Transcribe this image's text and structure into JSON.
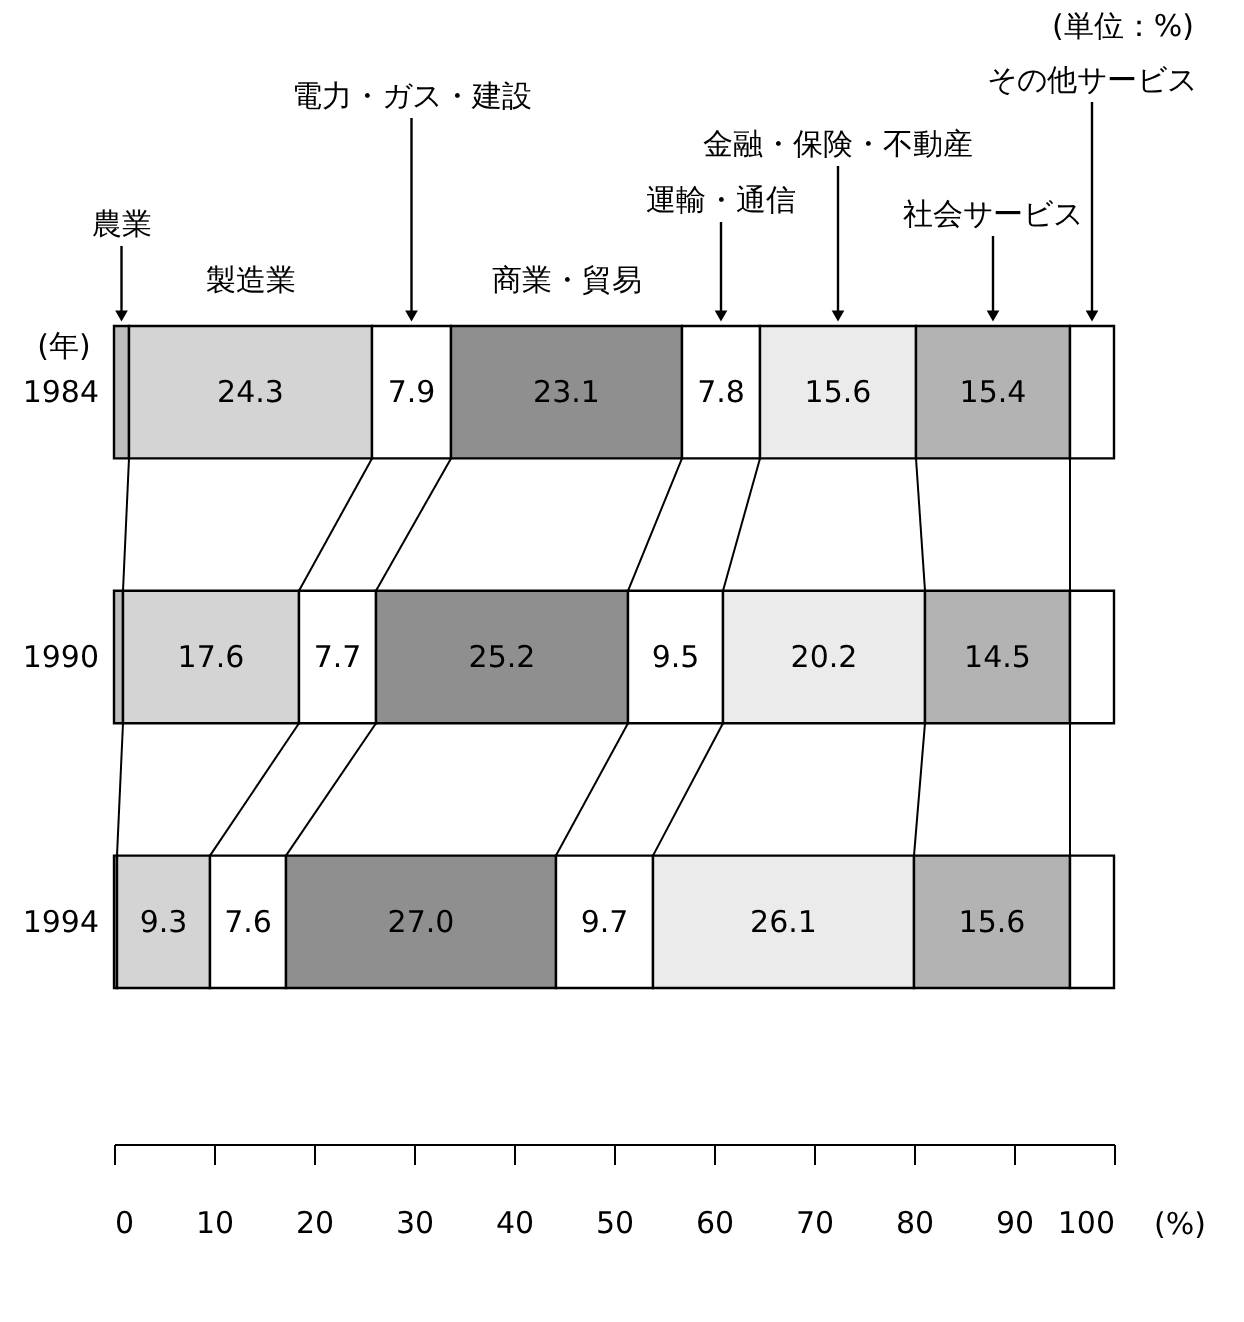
{
  "chart_data": {
    "type": "bar",
    "orientation": "horizontal",
    "stacked": true,
    "categories": [
      "1984",
      "1990",
      "1994"
    ],
    "series": [
      {
        "name": "農業",
        "color": "#bdbdbd",
        "values": [
          1.5,
          0.9,
          0.3
        ],
        "value_labels": [
          null,
          null,
          null
        ]
      },
      {
        "name": "製造業",
        "color": "#d4d4d4",
        "values": [
          24.3,
          17.6,
          9.3
        ],
        "value_labels": [
          "24.3",
          "17.6",
          "9.3"
        ]
      },
      {
        "name": "電力・ガス・建設",
        "color": "#ffffff",
        "values": [
          7.9,
          7.7,
          7.6
        ],
        "value_labels": [
          "7.9",
          "7.7",
          "7.6"
        ]
      },
      {
        "name": "商業・貿易",
        "color": "#8f8f8f",
        "values": [
          23.1,
          25.2,
          27.0
        ],
        "value_labels": [
          "23.1",
          "25.2",
          "27.0"
        ]
      },
      {
        "name": "運輸・通信",
        "color": "#ffffff",
        "values": [
          7.8,
          9.5,
          9.7
        ],
        "value_labels": [
          "7.8",
          "9.5",
          "9.7"
        ]
      },
      {
        "name": "金融・保険・不動産",
        "color": "#ebebeb",
        "values": [
          15.6,
          20.2,
          26.1
        ],
        "value_labels": [
          "15.6",
          "20.2",
          "26.1"
        ]
      },
      {
        "name": "社会サービス",
        "color": "#b3b3b3",
        "values": [
          15.4,
          14.5,
          15.6
        ],
        "value_labels": [
          "15.4",
          "14.5",
          "15.6"
        ]
      },
      {
        "name": "その他サービス",
        "color": "#ffffff",
        "values": [
          4.4,
          4.4,
          4.4
        ],
        "value_labels": [
          null,
          null,
          null
        ]
      }
    ],
    "xlim": [
      0,
      100
    ],
    "xticks": [
      0,
      10,
      20,
      30,
      40,
      50,
      60,
      70,
      80,
      90,
      100
    ],
    "xlabel": "(%)",
    "ylabel": "(年)",
    "annotations": [
      "(単位：%)"
    ],
    "grid": false
  }
}
